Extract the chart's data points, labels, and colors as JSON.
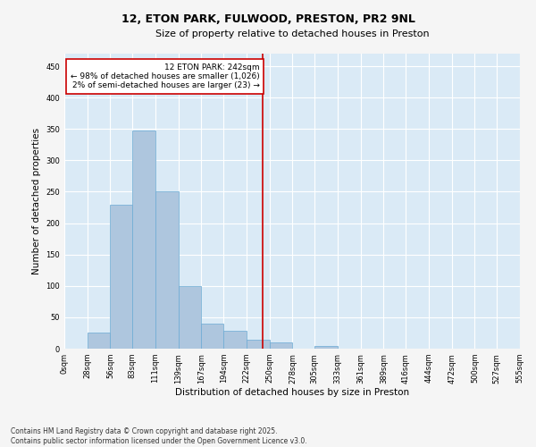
{
  "title": "12, ETON PARK, FULWOOD, PRESTON, PR2 9NL",
  "subtitle": "Size of property relative to detached houses in Preston",
  "xlabel": "Distribution of detached houses by size in Preston",
  "ylabel": "Number of detached properties",
  "bar_color": "#aec6de",
  "bar_edge_color": "#6aaad4",
  "background_color": "#daeaf6",
  "figure_bg_color": "#f5f5f5",
  "grid_color": "#ffffff",
  "annotation_line_color": "#cc0000",
  "annotation_box_color": "#cc0000",
  "annotation_line1": "12 ETON PARK: 242sqm",
  "annotation_line2": "← 98% of detached houses are smaller (1,026)",
  "annotation_line3": "2% of semi-detached houses are larger (23) →",
  "property_size": 242,
  "bin_edges": [
    0,
    28,
    56,
    83,
    111,
    139,
    167,
    194,
    222,
    250,
    278,
    305,
    333,
    361,
    389,
    416,
    444,
    472,
    500,
    527,
    555
  ],
  "bin_labels": [
    "0sqm",
    "28sqm",
    "56sqm",
    "83sqm",
    "111sqm",
    "139sqm",
    "167sqm",
    "194sqm",
    "222sqm",
    "250sqm",
    "278sqm",
    "305sqm",
    "333sqm",
    "361sqm",
    "389sqm",
    "416sqm",
    "444sqm",
    "472sqm",
    "500sqm",
    "527sqm",
    "555sqm"
  ],
  "bar_heights": [
    0,
    25,
    230,
    348,
    250,
    100,
    40,
    28,
    14,
    10,
    0,
    4,
    0,
    0,
    0,
    0,
    0,
    0,
    0,
    0
  ],
  "ylim": [
    0,
    470
  ],
  "yticks": [
    0,
    50,
    100,
    150,
    200,
    250,
    300,
    350,
    400,
    450
  ],
  "footer_line1": "Contains HM Land Registry data © Crown copyright and database right 2025.",
  "footer_line2": "Contains public sector information licensed under the Open Government Licence v3.0.",
  "title_fontsize": 9,
  "subtitle_fontsize": 8,
  "axis_label_fontsize": 7.5,
  "tick_fontsize": 6,
  "annotation_fontsize": 6.5,
  "footer_fontsize": 5.5
}
